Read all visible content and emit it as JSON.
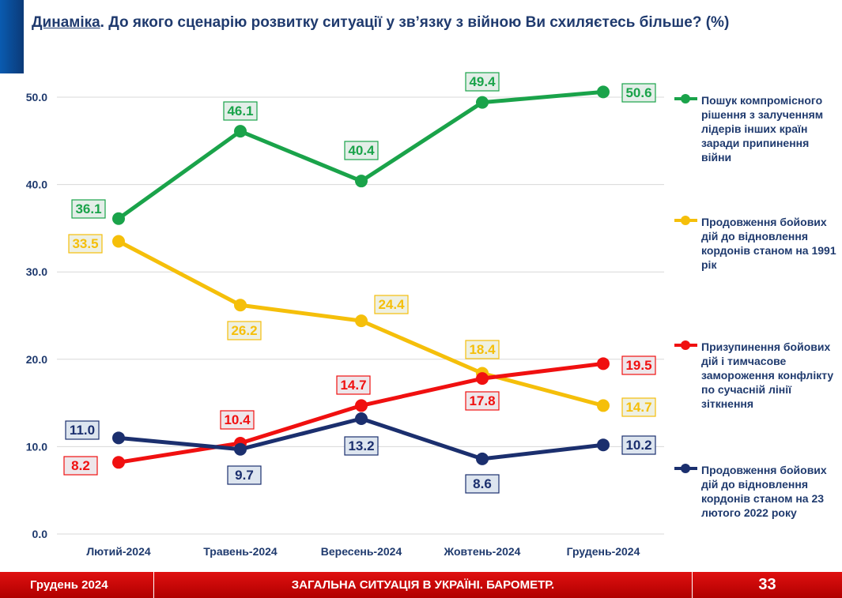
{
  "header": {
    "title_underlined": "Динаміка",
    "title_rest": ". До якого сценарію розвитку ситуації у зв’язку з війною Ви схиляєтесь більше? (%)"
  },
  "chart_data": {
    "type": "line",
    "categories": [
      "Лютий-2024",
      "Травень-2024",
      "Вересень-2024",
      "Жовтень-2024",
      "Грудень-2024"
    ],
    "ylim": [
      0,
      50
    ],
    "yticks": [
      "0.0",
      "10.0",
      "20.0",
      "30.0",
      "40.0",
      "50.0"
    ],
    "grid": true,
    "legend_placement": "right",
    "series": [
      {
        "name": "Пошук компромісного рішення з залученням лідерів інших країн заради припинення війни",
        "color": "#1aa34a",
        "values": [
          36.1,
          46.1,
          40.4,
          49.4,
          50.6
        ],
        "labels": [
          "36.1",
          "46.1",
          "40.4",
          "49.4",
          "50.6"
        ]
      },
      {
        "name": "Продовження бойових дій до відновлення кордонів станом на 1991 рік",
        "color": "#f5bf0a",
        "values": [
          33.5,
          26.2,
          24.4,
          18.4,
          14.7
        ],
        "labels": [
          "33.5",
          "26.2",
          "24.4",
          "18.4",
          "14.7"
        ]
      },
      {
        "name": "Призупинення бойових дій і тимчасове замороження конфлікту по сучасній лінії зіткнення",
        "color": "#f01010",
        "values": [
          8.2,
          10.4,
          14.7,
          17.8,
          19.5
        ],
        "labels": [
          "8.2",
          "10.4",
          "14.7",
          "17.8",
          "19.5"
        ]
      },
      {
        "name": "Продовження бойових дій до відновлення кордонів станом на 23 лютого 2022 року",
        "color": "#1b2f6e",
        "values": [
          11.0,
          9.7,
          13.2,
          8.6,
          10.2
        ],
        "labels": [
          "11.0",
          "9.7",
          "13.2",
          "8.6",
          "10.2"
        ]
      }
    ]
  },
  "footer": {
    "date": "Грудень 2024",
    "title": "ЗАГАЛЬНА СИТУАЦІЯ В УКРАЇНІ. БАРОМЕТР.",
    "page": "33"
  }
}
